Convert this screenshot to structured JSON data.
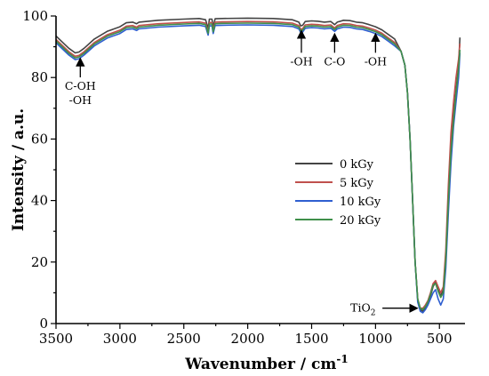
{
  "chart_data": {
    "type": "line",
    "xlabel": "Wavenumber / cm",
    "xlabel_sup": "-1",
    "ylabel": "Intensity / a.u.",
    "xlim": [
      3500,
      300
    ],
    "ylim": [
      0,
      100
    ],
    "x_reversed": true,
    "x_ticks": [
      3500,
      3000,
      2500,
      2000,
      1500,
      1000,
      500
    ],
    "y_ticks": [
      0,
      20,
      40,
      60,
      80,
      100
    ],
    "legend_position": "right-middle",
    "series": [
      {
        "name": "0 kGy",
        "color": "#444444",
        "offset": 0,
        "points": [
          [
            3500,
            93.5
          ],
          [
            3450,
            91.5
          ],
          [
            3400,
            89.5
          ],
          [
            3350,
            88
          ],
          [
            3320,
            88.3
          ],
          [
            3280,
            89.5
          ],
          [
            3200,
            92.5
          ],
          [
            3100,
            95
          ],
          [
            3000,
            96.5
          ],
          [
            2950,
            97.8
          ],
          [
            2900,
            98
          ],
          [
            2870,
            97.5
          ],
          [
            2850,
            98
          ],
          [
            2700,
            98.6
          ],
          [
            2500,
            99
          ],
          [
            2380,
            99.2
          ],
          [
            2330,
            98.8
          ],
          [
            2310,
            96
          ],
          [
            2300,
            99
          ],
          [
            2280,
            99
          ],
          [
            2270,
            96.5
          ],
          [
            2255,
            99.1
          ],
          [
            2200,
            99.2
          ],
          [
            2000,
            99.3
          ],
          [
            1800,
            99.2
          ],
          [
            1650,
            98.8
          ],
          [
            1600,
            98
          ],
          [
            1585,
            96.8
          ],
          [
            1570,
            97
          ],
          [
            1550,
            98.2
          ],
          [
            1500,
            98.4
          ],
          [
            1450,
            98.3
          ],
          [
            1400,
            98
          ],
          [
            1350,
            98.2
          ],
          [
            1320,
            97.2
          ],
          [
            1300,
            98
          ],
          [
            1250,
            98.6
          ],
          [
            1200,
            98.5
          ],
          [
            1150,
            98
          ],
          [
            1100,
            97.8
          ],
          [
            1050,
            97.2
          ],
          [
            1000,
            96.5
          ],
          [
            950,
            95.5
          ],
          [
            900,
            94
          ],
          [
            850,
            92.5
          ],
          [
            800,
            88.5
          ],
          [
            770,
            84
          ],
          [
            750,
            75
          ],
          [
            730,
            60
          ],
          [
            710,
            40
          ],
          [
            690,
            20
          ],
          [
            670,
            8
          ],
          [
            650,
            4.5
          ],
          [
            630,
            4
          ],
          [
            610,
            5
          ],
          [
            590,
            6.5
          ],
          [
            570,
            9
          ],
          [
            550,
            12
          ],
          [
            530,
            13.5
          ],
          [
            510,
            11
          ],
          [
            490,
            9
          ],
          [
            470,
            11
          ],
          [
            450,
            22
          ],
          [
            430,
            42
          ],
          [
            410,
            58
          ],
          [
            390,
            68
          ],
          [
            370,
            76
          ],
          [
            350,
            84
          ],
          [
            340,
            93
          ]
        ]
      },
      {
        "name": "5 kGy",
        "color": "#c0504d",
        "offset": -1.1,
        "points": [
          [
            3500,
            93.5
          ],
          [
            3450,
            91.5
          ],
          [
            3400,
            89.5
          ],
          [
            3350,
            88
          ],
          [
            3320,
            88.3
          ],
          [
            3280,
            89.5
          ],
          [
            3200,
            92.5
          ],
          [
            3100,
            95
          ],
          [
            3000,
            96.5
          ],
          [
            2950,
            97.8
          ],
          [
            2900,
            98
          ],
          [
            2870,
            97.5
          ],
          [
            2850,
            98
          ],
          [
            2700,
            98.6
          ],
          [
            2500,
            99
          ],
          [
            2380,
            99.2
          ],
          [
            2330,
            98.8
          ],
          [
            2310,
            96
          ],
          [
            2300,
            99
          ],
          [
            2280,
            99
          ],
          [
            2270,
            96.5
          ],
          [
            2255,
            99.1
          ],
          [
            2200,
            99.2
          ],
          [
            2000,
            99.3
          ],
          [
            1800,
            99.2
          ],
          [
            1650,
            98.8
          ],
          [
            1600,
            98
          ],
          [
            1585,
            96.8
          ],
          [
            1570,
            97
          ],
          [
            1550,
            98.2
          ],
          [
            1500,
            98.4
          ],
          [
            1450,
            98.3
          ],
          [
            1400,
            98
          ],
          [
            1350,
            98.2
          ],
          [
            1320,
            97.2
          ],
          [
            1300,
            98
          ],
          [
            1250,
            98.6
          ],
          [
            1200,
            98.5
          ],
          [
            1150,
            98
          ],
          [
            1100,
            97.8
          ],
          [
            1050,
            97.2
          ],
          [
            1000,
            96.5
          ],
          [
            950,
            95.5
          ],
          [
            900,
            94
          ],
          [
            850,
            92.5
          ],
          [
            800,
            88.5
          ],
          [
            770,
            84
          ],
          [
            750,
            75
          ],
          [
            730,
            60
          ],
          [
            710,
            40
          ],
          [
            690,
            20
          ],
          [
            670,
            8
          ],
          [
            650,
            5
          ],
          [
            630,
            5
          ],
          [
            610,
            6
          ],
          [
            590,
            7.5
          ],
          [
            570,
            10
          ],
          [
            550,
            13
          ],
          [
            530,
            14
          ],
          [
            510,
            12
          ],
          [
            490,
            10
          ],
          [
            470,
            12
          ],
          [
            450,
            24
          ],
          [
            430,
            45
          ],
          [
            410,
            62
          ],
          [
            390,
            72
          ],
          [
            370,
            80
          ],
          [
            350,
            86
          ],
          [
            340,
            91
          ]
        ]
      },
      {
        "name": "10 kGy",
        "color": "#2f5fd0",
        "offset": -2.2,
        "points": [
          [
            3500,
            93.5
          ],
          [
            3450,
            91.5
          ],
          [
            3400,
            89.5
          ],
          [
            3350,
            88
          ],
          [
            3320,
            88.3
          ],
          [
            3280,
            89.5
          ],
          [
            3200,
            92.5
          ],
          [
            3100,
            95
          ],
          [
            3000,
            96.5
          ],
          [
            2950,
            97.8
          ],
          [
            2900,
            98
          ],
          [
            2870,
            97.5
          ],
          [
            2850,
            98
          ],
          [
            2700,
            98.6
          ],
          [
            2500,
            99
          ],
          [
            2380,
            99.2
          ],
          [
            2330,
            98.8
          ],
          [
            2310,
            96
          ],
          [
            2300,
            99
          ],
          [
            2280,
            99
          ],
          [
            2270,
            96.5
          ],
          [
            2255,
            99.1
          ],
          [
            2200,
            99.2
          ],
          [
            2000,
            99.3
          ],
          [
            1800,
            99.2
          ],
          [
            1650,
            98.8
          ],
          [
            1600,
            98
          ],
          [
            1585,
            96.8
          ],
          [
            1570,
            97
          ],
          [
            1550,
            98.2
          ],
          [
            1500,
            98.4
          ],
          [
            1450,
            98.3
          ],
          [
            1400,
            98
          ],
          [
            1350,
            98.2
          ],
          [
            1320,
            97.2
          ],
          [
            1300,
            98
          ],
          [
            1250,
            98.6
          ],
          [
            1200,
            98.5
          ],
          [
            1150,
            98
          ],
          [
            1100,
            97.8
          ],
          [
            1050,
            97.2
          ],
          [
            1000,
            96.5
          ],
          [
            950,
            95.5
          ],
          [
            900,
            94
          ],
          [
            850,
            92.5
          ],
          [
            800,
            88.5
          ],
          [
            770,
            84
          ],
          [
            750,
            75
          ],
          [
            730,
            60
          ],
          [
            710,
            40
          ],
          [
            690,
            20
          ],
          [
            670,
            7
          ],
          [
            650,
            4
          ],
          [
            630,
            3.5
          ],
          [
            610,
            4.5
          ],
          [
            590,
            6
          ],
          [
            570,
            8
          ],
          [
            550,
            10
          ],
          [
            530,
            11
          ],
          [
            510,
            8
          ],
          [
            490,
            6
          ],
          [
            470,
            8
          ],
          [
            450,
            18
          ],
          [
            430,
            36
          ],
          [
            410,
            52
          ],
          [
            390,
            64
          ],
          [
            370,
            72
          ],
          [
            350,
            80
          ],
          [
            340,
            88
          ]
        ]
      },
      {
        "name": "20 kGy",
        "color": "#3f8f4a",
        "offset": -1.6,
        "points": [
          [
            3500,
            93.5
          ],
          [
            3450,
            91.5
          ],
          [
            3400,
            89.5
          ],
          [
            3350,
            88
          ],
          [
            3320,
            88.3
          ],
          [
            3280,
            89.5
          ],
          [
            3200,
            92.5
          ],
          [
            3100,
            95
          ],
          [
            3000,
            96.5
          ],
          [
            2950,
            97.8
          ],
          [
            2900,
            98
          ],
          [
            2870,
            97.5
          ],
          [
            2850,
            98
          ],
          [
            2700,
            98.6
          ],
          [
            2500,
            99
          ],
          [
            2380,
            99.2
          ],
          [
            2330,
            98.8
          ],
          [
            2310,
            96
          ],
          [
            2300,
            99
          ],
          [
            2280,
            99
          ],
          [
            2270,
            96.5
          ],
          [
            2255,
            99.1
          ],
          [
            2200,
            99.2
          ],
          [
            2000,
            99.3
          ],
          [
            1800,
            99.2
          ],
          [
            1650,
            98.8
          ],
          [
            1600,
            98
          ],
          [
            1585,
            96.8
          ],
          [
            1570,
            97
          ],
          [
            1550,
            98.2
          ],
          [
            1500,
            98.4
          ],
          [
            1450,
            98.3
          ],
          [
            1400,
            98
          ],
          [
            1350,
            98.2
          ],
          [
            1320,
            97.2
          ],
          [
            1300,
            98
          ],
          [
            1250,
            98.6
          ],
          [
            1200,
            98.5
          ],
          [
            1150,
            98
          ],
          [
            1100,
            97.8
          ],
          [
            1050,
            97.2
          ],
          [
            1000,
            96.5
          ],
          [
            950,
            95.5
          ],
          [
            900,
            94
          ],
          [
            850,
            92.5
          ],
          [
            800,
            88.5
          ],
          [
            770,
            84
          ],
          [
            750,
            75
          ],
          [
            730,
            60
          ],
          [
            710,
            40
          ],
          [
            690,
            20
          ],
          [
            670,
            8
          ],
          [
            650,
            5
          ],
          [
            630,
            4.5
          ],
          [
            610,
            5.5
          ],
          [
            590,
            7
          ],
          [
            570,
            9.5
          ],
          [
            550,
            12.5
          ],
          [
            530,
            13
          ],
          [
            510,
            10.5
          ],
          [
            490,
            8.5
          ],
          [
            470,
            10
          ],
          [
            450,
            21
          ],
          [
            430,
            40
          ],
          [
            410,
            56
          ],
          [
            390,
            66
          ],
          [
            370,
            75
          ],
          [
            350,
            83
          ],
          [
            340,
            89
          ]
        ]
      }
    ],
    "annotations": [
      {
        "lines": [
          "C-OH",
          "-OH"
        ],
        "x": 3310,
        "arrow_to_y": 87,
        "text_y": 76
      },
      {
        "lines": [
          "-OH"
        ],
        "x": 1580,
        "arrow_to_y": 96,
        "text_y": 84
      },
      {
        "lines": [
          "C-O"
        ],
        "x": 1320,
        "arrow_to_y": 95,
        "text_y": 84
      },
      {
        "lines": [
          "-OH"
        ],
        "x": 1000,
        "arrow_to_y": 95,
        "text_y": 84
      }
    ],
    "tio2_label": {
      "text": "TiO",
      "sub": "2",
      "arrow_to_x": 640,
      "arrow_to_y": 5
    }
  }
}
